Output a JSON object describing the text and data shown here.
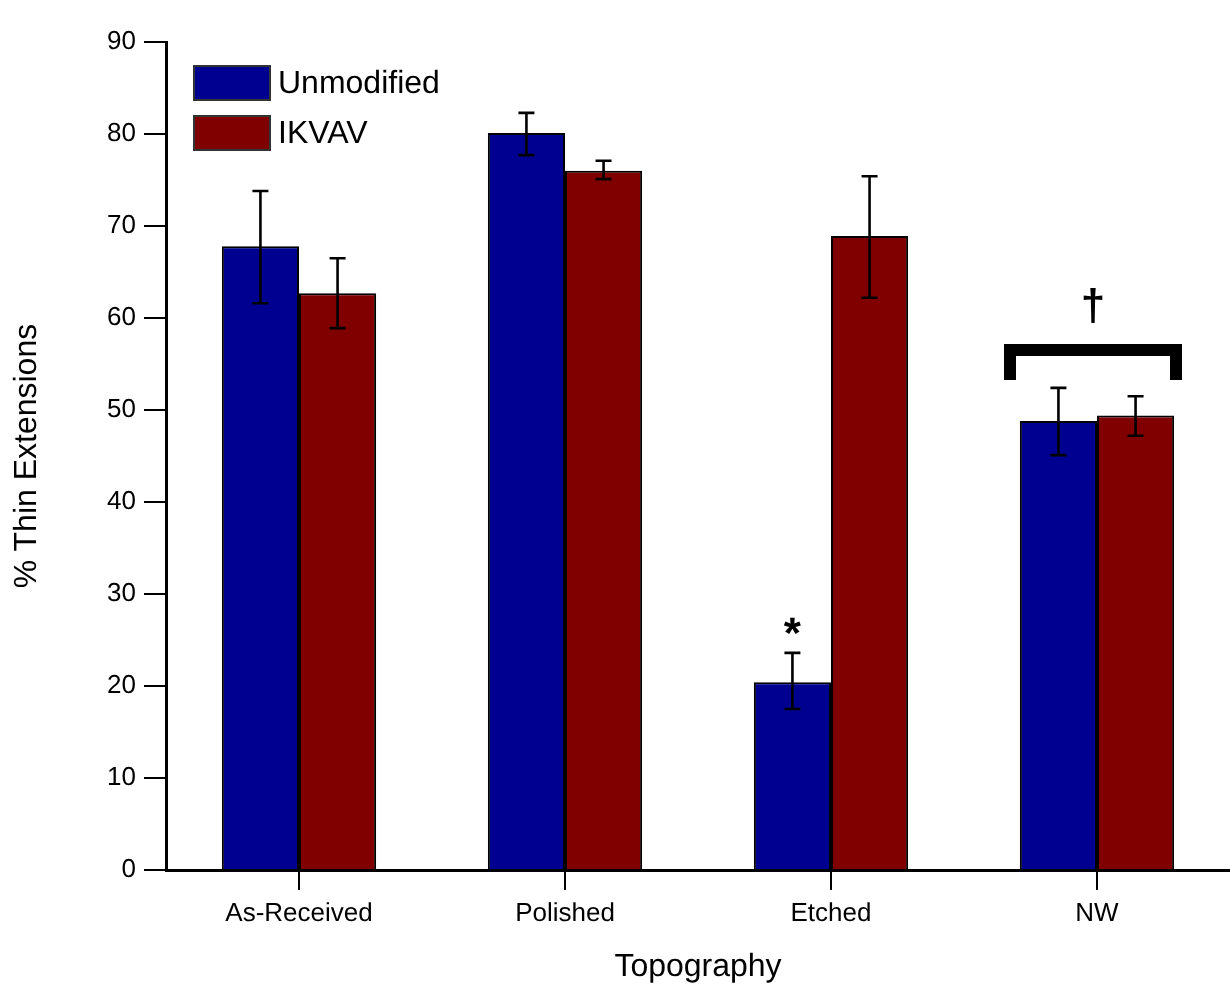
{
  "chart_data": {
    "type": "bar",
    "categories": [
      "As-Received",
      "Polished",
      "Etched",
      "NW"
    ],
    "xlabel": "Topography",
    "ylabel": "% Thin Extensions",
    "series": [
      {
        "name": "Unmodified",
        "color": "#000090",
        "values": [
          67.8,
          80.1,
          20.4,
          48.8
        ],
        "errors": [
          [
            61.6,
            73.8
          ],
          [
            77.7,
            82.3
          ],
          [
            17.5,
            23.6
          ],
          [
            45.1,
            52.4
          ]
        ]
      },
      {
        "name": "IKVAV",
        "color": "#800000",
        "values": [
          62.7,
          76.0,
          68.9,
          49.4
        ],
        "errors": [
          [
            58.9,
            66.5
          ],
          [
            75.1,
            77.1
          ],
          [
            62.2,
            75.4
          ],
          [
            47.2,
            51.5
          ]
        ]
      }
    ],
    "ylim": [
      0,
      90
    ],
    "yticks": [
      0,
      10,
      20,
      30,
      40,
      50,
      60,
      70,
      80,
      90
    ],
    "grid": false,
    "legend": "top left",
    "annotations": [
      {
        "text": "*",
        "x": "Etched",
        "y": 25.5
      },
      "†"
    ]
  }
}
